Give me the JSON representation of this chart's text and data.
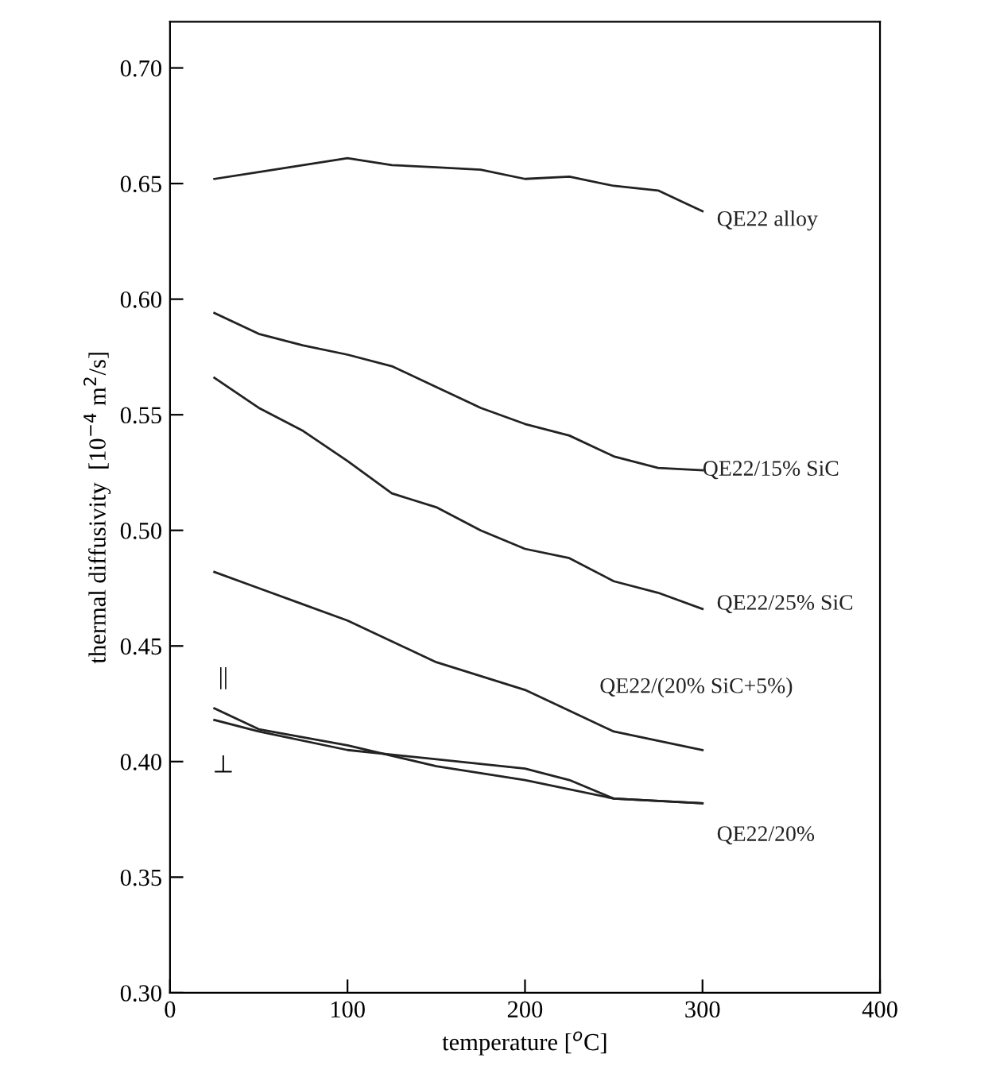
{
  "chart_data": {
    "type": "line",
    "xlabel": "temperature [$^{o}$C]",
    "ylabel": "thermal diffusivity  [10$^{−4}$ m$^{2}$/s]",
    "xlim": [
      0,
      400
    ],
    "ylim": [
      0.3,
      0.72
    ],
    "xticks": [
      0,
      100,
      200,
      300,
      400
    ],
    "yticks": [
      {
        "value": 0.3,
        "label": "0.30"
      },
      {
        "value": 0.35,
        "label": "0.35"
      },
      {
        "value": 0.4,
        "label": "0.40"
      },
      {
        "value": 0.45,
        "label": "0.45"
      },
      {
        "value": 0.5,
        "label": "0.50"
      },
      {
        "value": 0.55,
        "label": "0.55"
      },
      {
        "value": 0.6,
        "label": "0.60"
      },
      {
        "value": 0.65,
        "label": "0.65"
      },
      {
        "value": 0.7,
        "label": "0.70"
      }
    ],
    "grid": false,
    "legend": false,
    "marker": "none",
    "line_style": "solid",
    "series": [
      {
        "name": "QE22 alloy",
        "color": "#222222",
        "x": [
          25,
          50,
          75,
          100,
          125,
          150,
          175,
          200,
          225,
          250,
          275,
          300
        ],
        "values": [
          0.652,
          0.655,
          0.658,
          0.661,
          0.658,
          0.657,
          0.656,
          0.652,
          0.653,
          0.649,
          0.647,
          0.638
        ]
      },
      {
        "name": "QE22/15% SiC",
        "color": "#222222",
        "x": [
          25,
          50,
          75,
          100,
          125,
          150,
          175,
          200,
          225,
          250,
          275,
          300
        ],
        "values": [
          0.594,
          0.585,
          0.58,
          0.576,
          0.571,
          0.562,
          0.553,
          0.546,
          0.541,
          0.532,
          0.527,
          0.526
        ]
      },
      {
        "name": "QE22/25% SiC",
        "color": "#222222",
        "x": [
          25,
          50,
          75,
          100,
          125,
          150,
          175,
          200,
          225,
          250,
          275,
          300
        ],
        "values": [
          0.566,
          0.553,
          0.543,
          0.53,
          0.516,
          0.51,
          0.5,
          0.492,
          0.488,
          0.478,
          0.473,
          0.466
        ]
      },
      {
        "name": "QE22/(20% SiC+5%)",
        "color": "#222222",
        "x": [
          25,
          50,
          75,
          100,
          125,
          150,
          175,
          200,
          225,
          250,
          275,
          300
        ],
        "values": [
          0.482,
          0.475,
          0.468,
          0.461,
          0.452,
          0.443,
          0.437,
          0.431,
          0.422,
          0.413,
          0.409,
          0.405
        ]
      },
      {
        "name": "QE22/20%",
        "color": "#222222",
        "x": [
          25,
          50,
          100,
          150,
          200,
          250,
          300
        ],
        "values": [
          0.423,
          0.414,
          0.407,
          0.398,
          0.392,
          0.384,
          0.382
        ]
      },
      {
        "color": "#222222",
        "x": [
          25,
          50,
          100,
          150,
          200,
          225,
          250,
          300
        ],
        "values": [
          0.418,
          0.413,
          0.405,
          0.401,
          0.397,
          0.392,
          0.384,
          0.382
        ]
      }
    ],
    "annotations": [
      "||",
      "⊥"
    ]
  }
}
